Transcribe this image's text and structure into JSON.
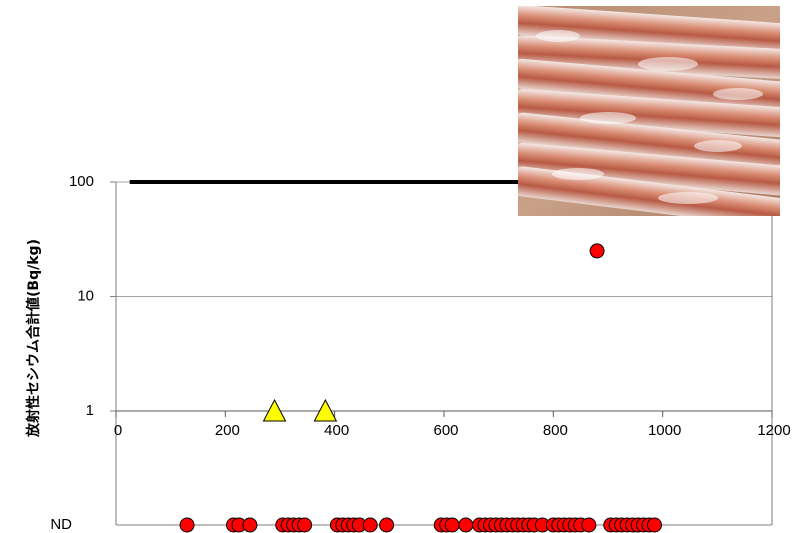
{
  "chart_data": {
    "type": "scatter",
    "ylabel": "放射性セシウム合計値(Bq/kg)",
    "xlabel": "",
    "title": "",
    "x_axis": {
      "range": [
        0,
        1200
      ],
      "ticks": [
        "0",
        "200",
        "400",
        "600",
        "800",
        "1000",
        "1200"
      ],
      "tick_values": [
        0,
        200,
        400,
        600,
        800,
        1000,
        1200
      ]
    },
    "y_axis": {
      "scale": "log",
      "range": [
        1,
        100
      ],
      "ticks": [
        "100",
        "10",
        "1"
      ],
      "tick_values": [
        100,
        10,
        1
      ],
      "nd_label": "ND"
    },
    "limit_line": {
      "y": 100,
      "x_range": [
        25,
        1200
      ]
    },
    "grid": {
      "horizontal": true,
      "vertical": false
    },
    "series": [
      {
        "marker": "circle",
        "color": "#ff0000",
        "points_detected": [
          {
            "x": 880,
            "y": 25
          }
        ],
        "nd_points_x": [
          130,
          215,
          225,
          245,
          305,
          315,
          325,
          335,
          345,
          405,
          415,
          425,
          435,
          445,
          465,
          495,
          595,
          605,
          615,
          640,
          665,
          675,
          685,
          695,
          705,
          715,
          725,
          735,
          745,
          755,
          765,
          780,
          800,
          810,
          820,
          830,
          840,
          850,
          865,
          905,
          915,
          925,
          935,
          945,
          955,
          965,
          975,
          985
        ]
      },
      {
        "marker": "triangle",
        "color": "#ffff00",
        "points_detected": [
          {
            "x": 290,
            "y": 1
          },
          {
            "x": 383,
            "y": 1
          }
        ]
      }
    ]
  },
  "colors": {
    "circle_fill": "#ff0000",
    "triangle_fill": "#ffff00",
    "limit_line": "#000000",
    "grid": "#a6a6a6"
  },
  "photo": {
    "label": "frozen-squid-photo"
  }
}
